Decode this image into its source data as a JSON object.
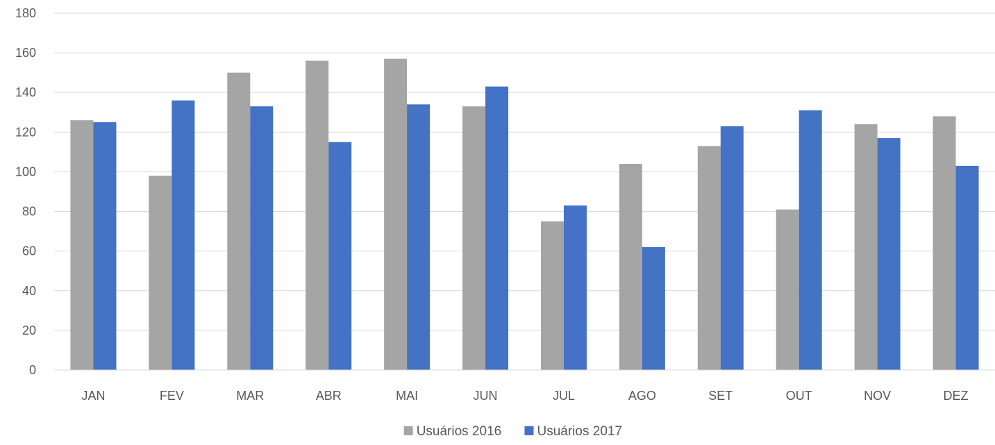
{
  "chart_data": {
    "type": "bar",
    "title": "",
    "xlabel": "",
    "ylabel": "",
    "ylim": [
      0,
      180
    ],
    "y_ticks": [
      0,
      20,
      40,
      60,
      80,
      100,
      120,
      140,
      160,
      180
    ],
    "grid": true,
    "legend_position": "bottom",
    "categories": [
      "JAN",
      "FEV",
      "MAR",
      "ABR",
      "MAI",
      "JUN",
      "JUL",
      "AGO",
      "SET",
      "OUT",
      "NOV",
      "DEZ"
    ],
    "series": [
      {
        "name": "Usuários 2016",
        "color": "#a5a5a5",
        "values": [
          126,
          98,
          150,
          156,
          157,
          133,
          75,
          104,
          113,
          81,
          124,
          128
        ]
      },
      {
        "name": "Usuários 2017",
        "color": "#4472c4",
        "values": [
          125,
          136,
          133,
          115,
          134,
          143,
          83,
          62,
          123,
          131,
          117,
          103
        ]
      }
    ]
  }
}
